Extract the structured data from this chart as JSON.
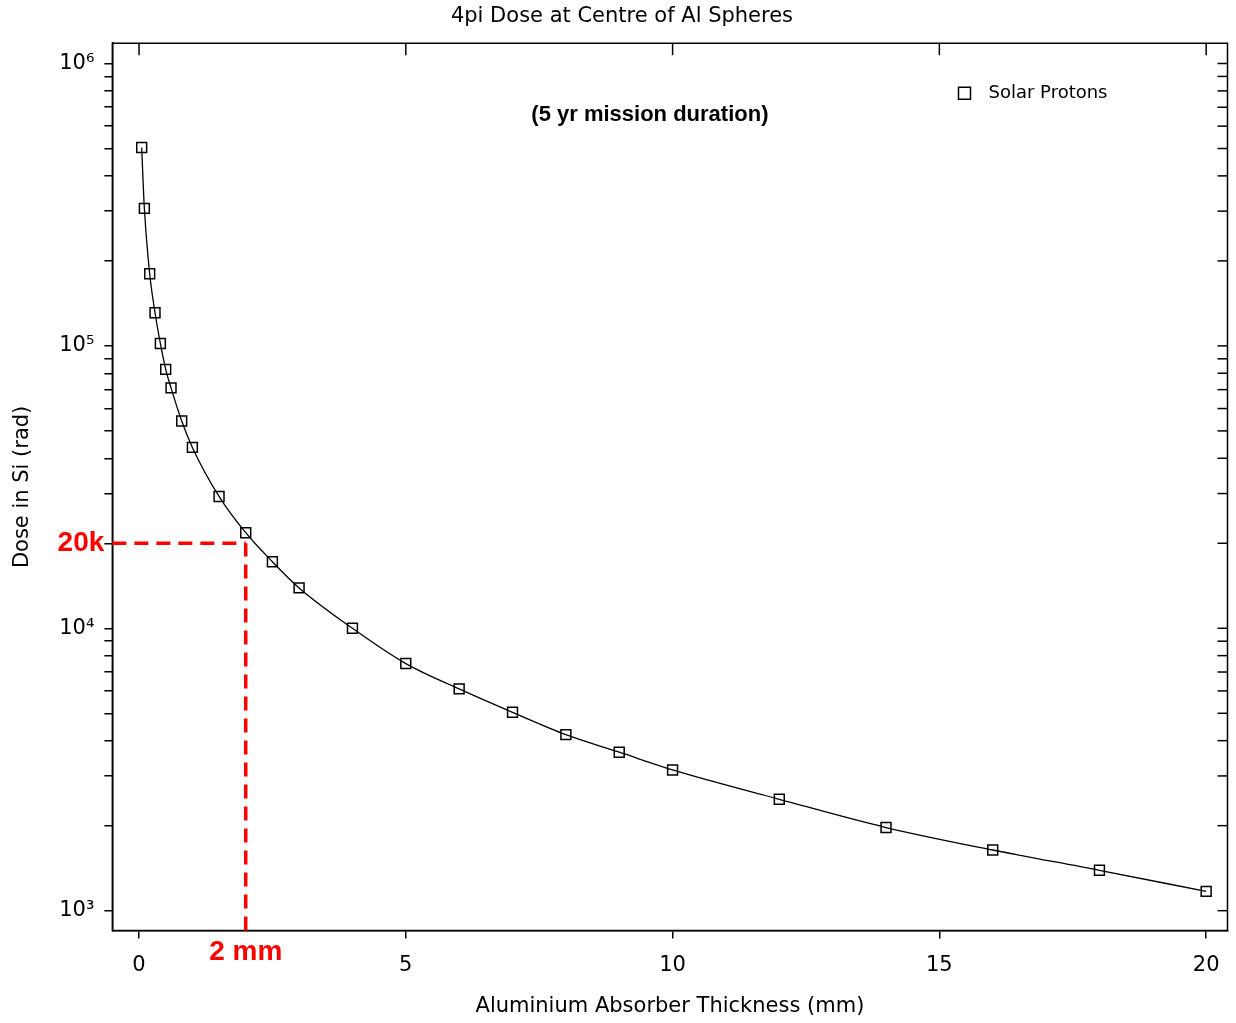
{
  "chart_data": {
    "type": "line",
    "title": "4pi Dose at Centre of Al Spheres",
    "xlabel": "Aluminium Absorber Thickness (mm)",
    "ylabel": "Dose in Si (rad)",
    "annotations": [
      "(5 yr mission duration)"
    ],
    "x": [
      0.05,
      0.1,
      0.2,
      0.3,
      0.4,
      0.5,
      0.6,
      0.8,
      1.0,
      1.5,
      2.0,
      2.5,
      3.0,
      4,
      5,
      6,
      7,
      8,
      9,
      10,
      12,
      14,
      16,
      18,
      20
    ],
    "series": [
      {
        "name": "Solar Protons",
        "color": "#000000",
        "values": [
          504000,
          307000,
          180000,
          131000,
          102000,
          82600,
          71000,
          54200,
          43700,
          29300,
          21800,
          17200,
          13900,
          10000,
          7500,
          6100,
          5040,
          4200,
          3640,
          3150,
          2480,
          1970,
          1640,
          1390,
          1170
        ]
      }
    ],
    "log": "y",
    "xlim": [
      -0.5,
      20.4
    ],
    "ylim": [
      850,
      1180000
    ],
    "xticks": [
      0,
      5,
      10,
      15,
      20
    ],
    "yticks": [
      {
        "value": 1000,
        "label": "10³"
      },
      {
        "value": 2000,
        "label": null
      },
      {
        "value": 3000,
        "label": null
      },
      {
        "value": 4000,
        "label": null
      },
      {
        "value": 5000,
        "label": null
      },
      {
        "value": 6000,
        "label": null
      },
      {
        "value": 7000,
        "label": null
      },
      {
        "value": 8000,
        "label": null
      },
      {
        "value": 9000,
        "label": null
      },
      {
        "value": 10000,
        "label": "10⁴"
      },
      {
        "value": 20000,
        "label": null
      },
      {
        "value": 30000,
        "label": null
      },
      {
        "value": 40000,
        "label": null
      },
      {
        "value": 50000,
        "label": null
      },
      {
        "value": 60000,
        "label": null
      },
      {
        "value": 70000,
        "label": null
      },
      {
        "value": 80000,
        "label": null
      },
      {
        "value": 90000,
        "label": null
      },
      {
        "value": 100000,
        "label": "10⁵"
      },
      {
        "value": 200000,
        "label": null
      },
      {
        "value": 300000,
        "label": null
      },
      {
        "value": 400000,
        "label": null
      },
      {
        "value": 500000,
        "label": null
      },
      {
        "value": 600000,
        "label": null
      },
      {
        "value": 700000,
        "label": null
      },
      {
        "value": 800000,
        "label": null
      },
      {
        "value": 900000,
        "label": null
      },
      {
        "value": 1000000,
        "label": "10⁶"
      }
    ],
    "ref_lines": [
      {
        "axis": "y",
        "value": 20000,
        "label": "20k",
        "color": "#ff0000",
        "line_style": "dashed"
      },
      {
        "axis": "x",
        "value": 2,
        "label": "2 mm",
        "color": "#ff0000",
        "line_style": "dashed"
      }
    ],
    "grid": false,
    "legend": "top right",
    "marker": "square",
    "line_style": "solid"
  }
}
